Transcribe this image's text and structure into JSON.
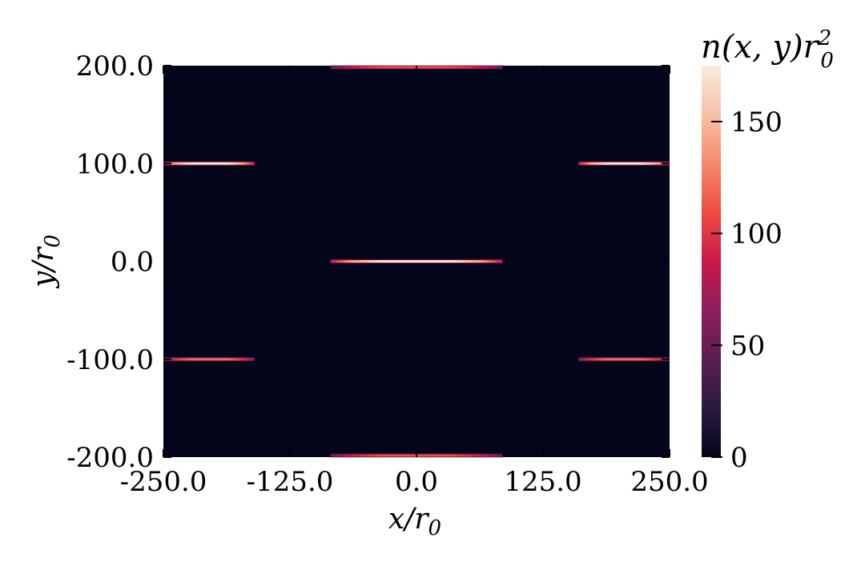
{
  "chart_data": {
    "type": "heatmap",
    "xlabel": "x/r",
    "xlabel_sub": "0",
    "ylabel": "y/r",
    "ylabel_sub": "0",
    "xlim": [
      -250.0,
      250.0
    ],
    "ylim": [
      -200.0,
      200.0
    ],
    "xticks": [
      -250.0,
      -125.0,
      0.0,
      125.0,
      250.0
    ],
    "xtick_labels": [
      "-250.0",
      "-125.0",
      "0.0",
      "125.0",
      "250.0"
    ],
    "yticks": [
      -200.0,
      -100.0,
      0.0,
      100.0,
      200.0
    ],
    "ytick_labels": [
      "-200.0",
      "-100.0",
      "0.0",
      "100.0",
      "200.0"
    ],
    "background_value": 0,
    "colorbar": {
      "title_main": "n(x, y)r",
      "title_sub": "0",
      "title_sup": "2",
      "min": 0,
      "max": 175,
      "ticks": [
        0,
        50,
        100,
        150
      ],
      "tick_labels": [
        "0",
        "50",
        "100",
        "150"
      ],
      "colormap": "rocket",
      "colors": [
        "#03051a",
        "#2b1a3e",
        "#5a1f4e",
        "#8e1d5b",
        "#c9184a",
        "#ee4c3f",
        "#f6896a",
        "#f8c0a8",
        "#faebdd"
      ]
    },
    "features": [
      {
        "label": "stripe-center",
        "x": [
          -85,
          85
        ],
        "y": 0,
        "peak": 175
      },
      {
        "label": "stripe-left-upper",
        "x": [
          -250,
          -160
        ],
        "y": 100,
        "peak": 175
      },
      {
        "label": "stripe-right-upper",
        "x": [
          160,
          250
        ],
        "y": 100,
        "peak": 175
      },
      {
        "label": "stripe-left-lower",
        "x": [
          -250,
          -160
        ],
        "y": -100,
        "peak": 120
      },
      {
        "label": "stripe-right-lower",
        "x": [
          160,
          250
        ],
        "y": -100,
        "peak": 120
      },
      {
        "label": "stripe-top-edge",
        "x": [
          -85,
          85
        ],
        "y": 200,
        "peak": 110
      },
      {
        "label": "stripe-bottom-edge",
        "x": [
          -85,
          85
        ],
        "y": -200,
        "peak": 110
      }
    ]
  }
}
